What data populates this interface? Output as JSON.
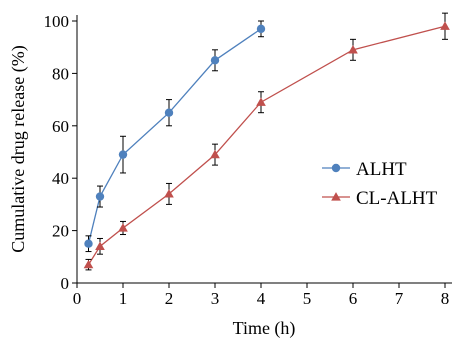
{
  "chart_data": {
    "type": "line",
    "title": "",
    "xlabel": "Time (h)",
    "ylabel": "Cumulative  drug release (%)",
    "xlim": [
      0,
      8
    ],
    "ylim": [
      0,
      100
    ],
    "x_ticks": [
      0,
      1,
      2,
      3,
      4,
      5,
      6,
      7,
      8
    ],
    "y_ticks": [
      0,
      20,
      40,
      60,
      80,
      100
    ],
    "x_tick_labels": [
      "0",
      "1",
      "2",
      "3",
      "4",
      "5",
      "6",
      "7",
      "8"
    ],
    "y_tick_labels": [
      "0",
      "20",
      "40",
      "60",
      "80",
      "100"
    ],
    "grid": false,
    "legend_position": "center-right",
    "series": [
      {
        "name": "ALHT",
        "color": "#4f81bd",
        "marker": "circle",
        "x": [
          0.25,
          0.5,
          1,
          2,
          3,
          4
        ],
        "y": [
          15,
          33,
          49,
          65,
          85,
          97
        ],
        "error": [
          3,
          4,
          7,
          5,
          4,
          3
        ]
      },
      {
        "name": "CL-ALHT",
        "color": "#c0504d",
        "marker": "triangle",
        "x": [
          0.25,
          0.5,
          1,
          2,
          3,
          4,
          6,
          8
        ],
        "y": [
          7,
          14,
          21,
          34,
          49,
          69,
          89,
          98
        ],
        "error": [
          2,
          3,
          2.5,
          4,
          4,
          4,
          4,
          5
        ]
      }
    ]
  }
}
